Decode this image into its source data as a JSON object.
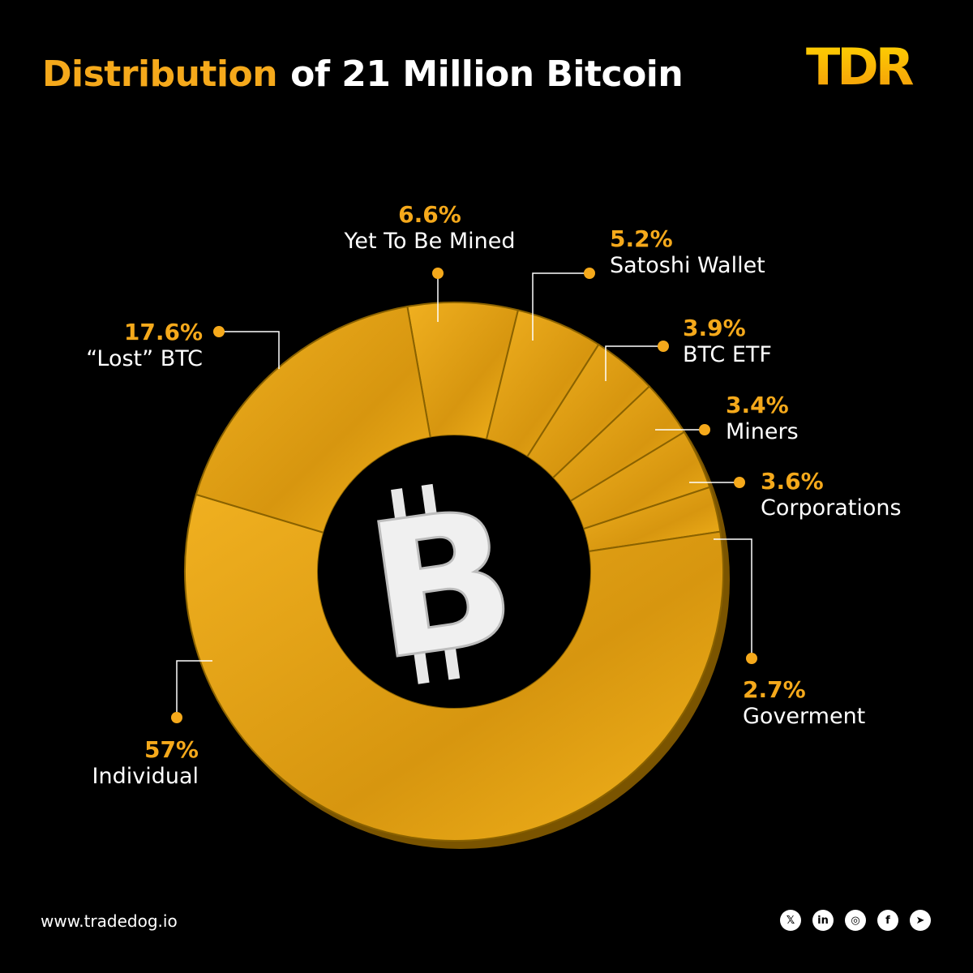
{
  "header": {
    "title_accent": "Distribution",
    "title_rest": "of 21 Million Bitcoin",
    "logo_text": "TDR"
  },
  "colors": {
    "accent": "#f5a91b",
    "ring": "#e6a214",
    "background": "#000000"
  },
  "center_icon": "bitcoin-icon",
  "chart_data": {
    "type": "pie",
    "title": "Distribution of 21 Million Bitcoin",
    "slices": [
      {
        "label": "Individual",
        "pct_text": "57%",
        "value": 57
      },
      {
        "label": "“Lost” BTC",
        "pct_text": "17.6%",
        "value": 17.6
      },
      {
        "label": "Yet To Be Mined",
        "pct_text": "6.6%",
        "value": 6.6
      },
      {
        "label": "Satoshi Wallet",
        "pct_text": "5.2%",
        "value": 5.2
      },
      {
        "label": "BTC ETF",
        "pct_text": "3.9%",
        "value": 3.9
      },
      {
        "label": "Miners",
        "pct_text": "3.4%",
        "value": 3.4
      },
      {
        "label": "Corporations",
        "pct_text": "3.6%",
        "value": 3.6
      },
      {
        "label": "Goverment",
        "pct_text": "2.7%",
        "value": 2.7
      }
    ]
  },
  "footer": {
    "url": "www.tradedog.io",
    "social": [
      "x-icon",
      "linkedin-icon",
      "instagram-icon",
      "facebook-icon",
      "telegram-icon"
    ]
  }
}
